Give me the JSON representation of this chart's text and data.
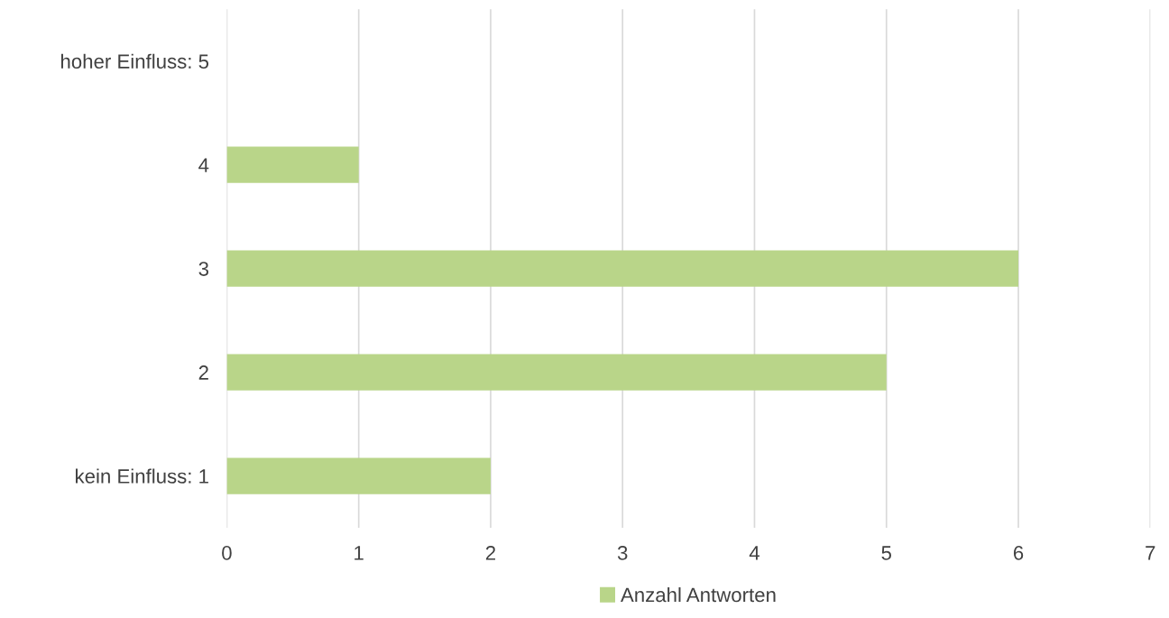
{
  "chart_data": {
    "type": "bar",
    "orientation": "horizontal",
    "categories": [
      "hoher Einfluss: 5",
      "4",
      "3",
      "2",
      "kein Einfluss: 1"
    ],
    "series": [
      {
        "name": "Anzahl Antworten",
        "color": "#b9d589",
        "values": [
          0,
          1,
          6,
          5,
          2
        ]
      }
    ],
    "xlim": [
      0,
      7
    ],
    "xticks": [
      0,
      1,
      2,
      3,
      4,
      5,
      6,
      7
    ],
    "grid": "x",
    "legend": "bottom"
  }
}
